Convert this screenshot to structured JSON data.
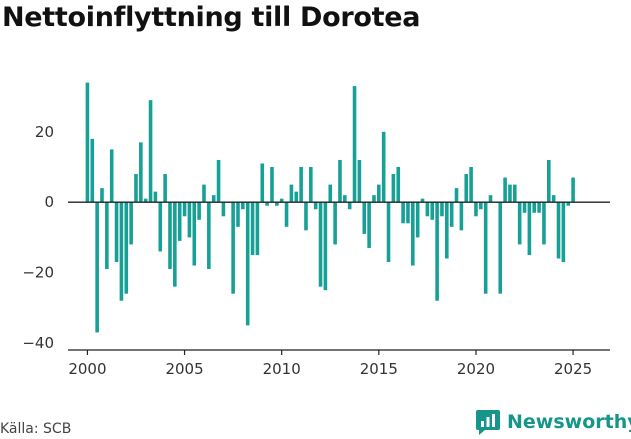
{
  "title": "Nettoinflyttning till Dorotea",
  "source": "Källa: SCB",
  "brand": "Newsworthy",
  "colors": {
    "bar": "#16a096",
    "axis": "#222222",
    "brand": "#16968a"
  },
  "chart_data": {
    "type": "bar",
    "title": "Nettoinflyttning till Dorotea",
    "xlabel": "",
    "ylabel": "",
    "frequency": "quarterly",
    "start": 2000,
    "xlim": [
      1999.0,
      2026.9
    ],
    "ylim": [
      -42,
      37
    ],
    "xticks": [
      2000,
      2005,
      2010,
      2015,
      2020,
      2025
    ],
    "yticks": [
      -40,
      -20,
      0,
      20
    ],
    "grid": false,
    "values": [
      34,
      18,
      -37,
      4,
      -19,
      15,
      -17,
      -28,
      -26,
      -12,
      8,
      17,
      1,
      29,
      3,
      -14,
      8,
      -19,
      -24,
      -11,
      -4,
      -10,
      -18,
      -5,
      5,
      -19,
      2,
      12,
      -4,
      0,
      -26,
      -7,
      -2,
      -35,
      -15,
      -15,
      11,
      -1,
      10,
      -1,
      1,
      -7,
      5,
      3,
      10,
      -8,
      10,
      -2,
      -24,
      -25,
      5,
      -12,
      12,
      2,
      -2,
      33,
      12,
      -9,
      -13,
      2,
      5,
      20,
      -17,
      8,
      10,
      -6,
      -6,
      -18,
      -10,
      1,
      -4,
      -5,
      -28,
      -4,
      -16,
      -7,
      4,
      -8,
      8,
      10,
      -4,
      -2,
      -26,
      2,
      0,
      -26,
      7,
      5,
      5,
      -12,
      -3,
      -15,
      -3,
      -3,
      -12,
      12,
      2,
      -16,
      -17,
      -1,
      7
    ]
  }
}
